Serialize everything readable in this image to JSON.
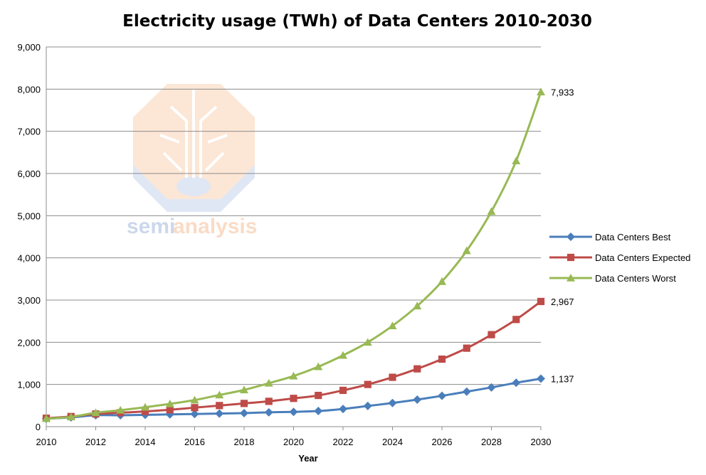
{
  "chart_data": {
    "type": "line",
    "title": "Electricity usage (TWh) of Data Centers 2010-2030",
    "xlabel": "Year",
    "ylabel": "",
    "x": [
      2010,
      2011,
      2012,
      2013,
      2014,
      2015,
      2016,
      2017,
      2018,
      2019,
      2020,
      2021,
      2022,
      2023,
      2024,
      2025,
      2026,
      2027,
      2028,
      2029,
      2030
    ],
    "xticks": [
      "2010",
      "2012",
      "2014",
      "2016",
      "2018",
      "2020",
      "2022",
      "2024",
      "2026",
      "2028",
      "2030"
    ],
    "yticks": [
      "0",
      "1,000",
      "2,000",
      "3,000",
      "4,000",
      "5,000",
      "6,000",
      "7,000",
      "8,000",
      "9,000"
    ],
    "ylim": [
      0,
      9000
    ],
    "xlim": [
      2010,
      2030
    ],
    "grid": true,
    "legend_position": "right",
    "series": [
      {
        "name": "Data Centers Best",
        "color": "#4a7ebb",
        "marker": "diamond",
        "values": [
          190,
          220,
          270,
          270,
          280,
          290,
          300,
          310,
          320,
          340,
          350,
          370,
          420,
          490,
          560,
          640,
          730,
          830,
          930,
          1040,
          1137
        ],
        "end_label": "1,137"
      },
      {
        "name": "Data Centers Expected",
        "color": "#be4b48",
        "marker": "square",
        "values": [
          200,
          240,
          300,
          330,
          360,
          400,
          450,
          500,
          550,
          600,
          670,
          740,
          860,
          1000,
          1170,
          1370,
          1600,
          1860,
          2180,
          2540,
          2967
        ],
        "end_label": "2,967"
      },
      {
        "name": "Data Centers Worst",
        "color": "#98b954",
        "marker": "triangle",
        "values": [
          190,
          230,
          330,
          390,
          460,
          540,
          630,
          750,
          870,
          1030,
          1200,
          1420,
          1690,
          2000,
          2390,
          2860,
          3440,
          4170,
          5100,
          6300,
          7933
        ],
        "end_label": "7,933"
      }
    ]
  },
  "watermark": {
    "text_a": "semi",
    "text_b": "analysis"
  }
}
